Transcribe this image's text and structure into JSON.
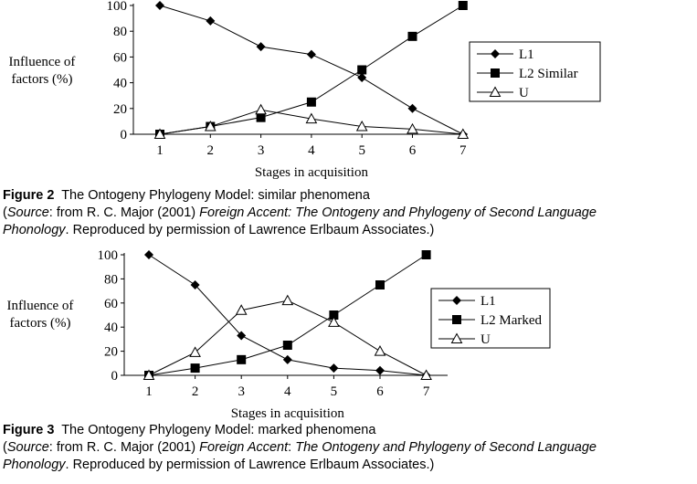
{
  "chart_data": [
    {
      "type": "line",
      "title": "",
      "xlabel": "Stages in acquisition",
      "ylabel": "Influence of factors (%)",
      "ylabel_lines": [
        "Influence of",
        "factors (%)"
      ],
      "x": [
        1,
        2,
        3,
        4,
        5,
        6,
        7
      ],
      "ylim": [
        0,
        100
      ],
      "yticks": [
        0,
        20,
        40,
        60,
        80,
        100
      ],
      "grid": false,
      "legend_position": "right",
      "series": [
        {
          "name": "L1",
          "marker": "diamond",
          "values": [
            100,
            88,
            68,
            62,
            44,
            20,
            0
          ]
        },
        {
          "name": "L2 Similar",
          "marker": "square",
          "values": [
            0,
            6,
            13,
            25,
            50,
            76,
            100
          ]
        },
        {
          "name": "U",
          "marker": "triangle-open",
          "values": [
            0,
            6,
            19,
            12,
            6,
            4,
            0
          ]
        }
      ]
    },
    {
      "type": "line",
      "title": "",
      "xlabel": "Stages in acquisition",
      "ylabel": "Influence of factors (%)",
      "ylabel_lines": [
        "Influence of",
        "factors (%)"
      ],
      "x": [
        1,
        2,
        3,
        4,
        5,
        6,
        7
      ],
      "ylim": [
        0,
        100
      ],
      "yticks": [
        0,
        20,
        40,
        60,
        80,
        100
      ],
      "grid": false,
      "legend_position": "right",
      "series": [
        {
          "name": "L1",
          "marker": "diamond",
          "values": [
            100,
            75,
            33,
            13,
            6,
            4,
            0
          ]
        },
        {
          "name": "L2 Marked",
          "marker": "square",
          "values": [
            0,
            6,
            13,
            25,
            50,
            75,
            100
          ]
        },
        {
          "name": "U",
          "marker": "triangle-open",
          "values": [
            0,
            19,
            54,
            62,
            44,
            20,
            0
          ]
        }
      ]
    }
  ],
  "captions": [
    {
      "label": "Figure 2",
      "title": "The Ontogeny Phylogeny Model: similar phenomena",
      "source_open": "(",
      "source_word": "Source",
      "source_from": ": from R. C. Major (2001) ",
      "book_title": "Foreign Accent: The Ontogeny and Phylogeny of Second Language Phonology",
      "permission": ". Reproduced by permission of Lawrence Erlbaum Associates.)"
    },
    {
      "label": "Figure 3",
      "title": "The Ontogeny Phylogeny Model: marked phenomena",
      "source_open": "(",
      "source_word": "Source",
      "source_from": ": from R. C. Major (2001) ",
      "book_title_part1": "Foreign Accent",
      "book_colon": ": ",
      "book_title_part2": "The Ontogeny and Phylogeny of Second Language Phonology",
      "permission": ". Reproduced by permission of Lawrence Erlbaum Associates.)"
    }
  ]
}
